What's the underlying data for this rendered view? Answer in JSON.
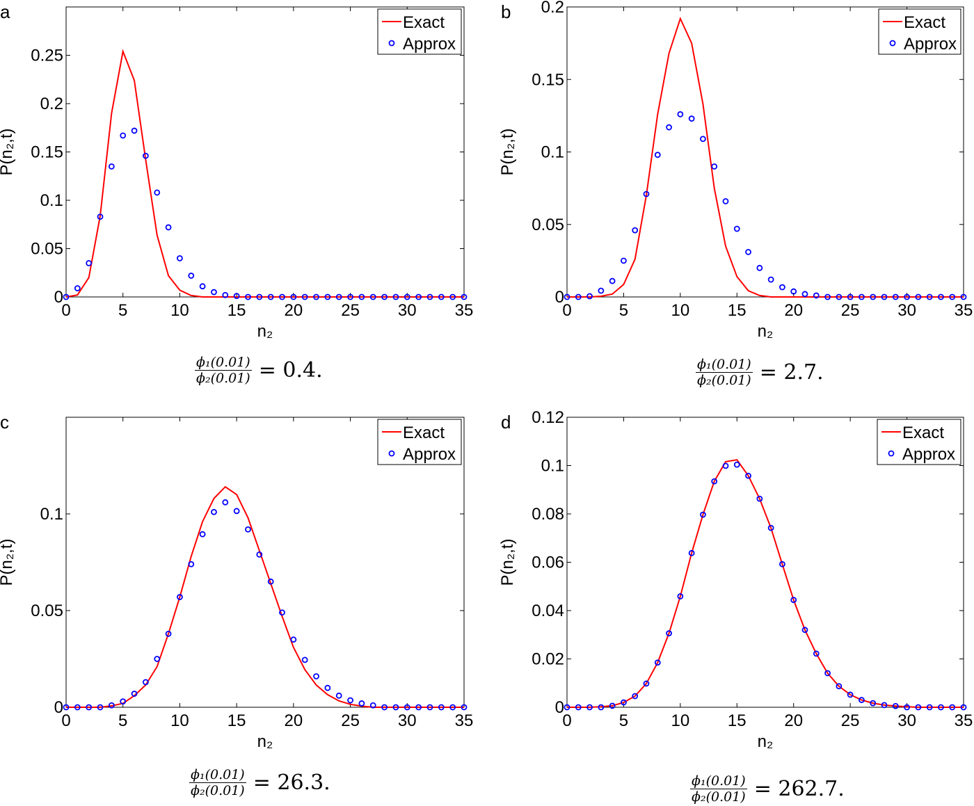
{
  "chart_data": [
    {
      "panel_label": "a",
      "type": "line+scatter",
      "xlabel": "n₂",
      "ylabel": "P(n₂,t)",
      "xlim": [
        0,
        35
      ],
      "ylim": [
        0,
        0.3
      ],
      "xticks": [
        0,
        5,
        10,
        15,
        20,
        25,
        30,
        35
      ],
      "xtick_labels": [
        "0",
        "5",
        "10",
        "15",
        "20",
        "25",
        "30",
        "35"
      ],
      "yticks": [
        0,
        0.05,
        0.1,
        0.15,
        0.2,
        0.25
      ],
      "ytick_labels": [
        "0",
        "0.05",
        "0.1",
        "0.15",
        "0.2",
        "0.25"
      ],
      "legend": [
        "Exact",
        "Approx"
      ],
      "legend_position": "top-right",
      "caption": {
        "num": "ϕ₁(0.01)",
        "den": "ϕ₂(0.01)",
        "rhs": "= 0.4."
      },
      "x": [
        0,
        1,
        2,
        3,
        4,
        5,
        6,
        7,
        8,
        9,
        10,
        11,
        12,
        13,
        14,
        15,
        16,
        17,
        18,
        19,
        20,
        21,
        22,
        23,
        24,
        25,
        26,
        27,
        28,
        29,
        30,
        31,
        32,
        33,
        34,
        35
      ],
      "series": [
        {
          "name": "Exact",
          "style": "line",
          "color": "#ff0000",
          "values": [
            0,
            0.002,
            0.02,
            0.084,
            0.19,
            0.254,
            0.224,
            0.142,
            0.064,
            0.022,
            0.007,
            0.0015,
            0,
            0,
            0,
            0,
            0,
            0,
            0,
            0,
            0,
            0,
            0,
            0,
            0,
            0,
            0,
            0,
            0,
            0,
            0,
            0,
            0,
            0,
            0,
            0
          ]
        },
        {
          "name": "Approx",
          "style": "circle",
          "color": "#0000ff",
          "values": [
            0,
            0.009,
            0.035,
            0.083,
            0.135,
            0.167,
            0.172,
            0.146,
            0.108,
            0.072,
            0.04,
            0.022,
            0.011,
            0.005,
            0.002,
            0.001,
            0,
            0,
            0,
            0,
            0,
            0,
            0,
            0,
            0,
            0,
            0,
            0,
            0,
            0,
            0,
            0,
            0,
            0,
            0,
            0
          ]
        }
      ]
    },
    {
      "panel_label": "b",
      "type": "line+scatter",
      "xlabel": "n₂",
      "ylabel": "P(n₂,t)",
      "xlim": [
        0,
        35
      ],
      "ylim": [
        0,
        0.2
      ],
      "xticks": [
        0,
        5,
        10,
        15,
        20,
        25,
        30,
        35
      ],
      "xtick_labels": [
        "0",
        "5",
        "10",
        "15",
        "20",
        "25",
        "30",
        "35"
      ],
      "yticks": [
        0,
        0.05,
        0.1,
        0.15,
        0.2
      ],
      "ytick_labels": [
        "0",
        "0.05",
        "0.1",
        "0.15",
        "0.2"
      ],
      "legend": [
        "Exact",
        "Approx"
      ],
      "legend_position": "top-right",
      "caption": {
        "num": "ϕ₁(0.01)",
        "den": "ϕ₂(0.01)",
        "rhs": "= 2.7."
      },
      "x": [
        0,
        1,
        2,
        3,
        4,
        5,
        6,
        7,
        8,
        9,
        10,
        11,
        12,
        13,
        14,
        15,
        16,
        17,
        18,
        19,
        20,
        21,
        22,
        23,
        24,
        25,
        26,
        27,
        28,
        29,
        30,
        31,
        32,
        33,
        34,
        35
      ],
      "series": [
        {
          "name": "Exact",
          "style": "line",
          "color": "#ff0000",
          "values": [
            0,
            0,
            0,
            0.0005,
            0.002,
            0.0086,
            0.026,
            0.07,
            0.126,
            0.168,
            0.192,
            0.175,
            0.133,
            0.075,
            0.035,
            0.014,
            0.0043,
            0.001,
            0,
            0,
            0,
            0,
            0,
            0,
            0,
            0,
            0,
            0,
            0,
            0,
            0,
            0,
            0,
            0,
            0,
            0
          ]
        },
        {
          "name": "Approx",
          "style": "circle",
          "color": "#0000ff",
          "values": [
            0,
            0,
            0.0005,
            0.0043,
            0.011,
            0.025,
            0.046,
            0.071,
            0.098,
            0.117,
            0.126,
            0.123,
            0.109,
            0.09,
            0.066,
            0.047,
            0.031,
            0.02,
            0.012,
            0.0067,
            0.0038,
            0.002,
            0.001,
            0,
            0,
            0,
            0,
            0,
            0,
            0,
            0,
            0,
            0,
            0,
            0,
            0
          ]
        }
      ]
    },
    {
      "panel_label": "c",
      "type": "line+scatter",
      "xlabel": "n₂",
      "ylabel": "P(n₂,t)",
      "xlim": [
        0,
        35
      ],
      "ylim": [
        0,
        0.15
      ],
      "xticks": [
        0,
        5,
        10,
        15,
        20,
        25,
        30,
        35
      ],
      "xtick_labels": [
        "0",
        "5",
        "10",
        "15",
        "20",
        "25",
        "30",
        "35"
      ],
      "yticks": [
        0,
        0.05,
        0.1
      ],
      "ytick_labels": [
        "0",
        "0.05",
        "0.1"
      ],
      "legend": [
        "Exact",
        "Approx"
      ],
      "legend_position": "top-right",
      "caption": {
        "num": "ϕ₁(0.01)",
        "den": "ϕ₂(0.01)",
        "rhs": "= 26.3."
      },
      "x": [
        0,
        1,
        2,
        3,
        4,
        5,
        6,
        7,
        8,
        9,
        10,
        11,
        12,
        13,
        14,
        15,
        16,
        17,
        18,
        19,
        20,
        21,
        22,
        23,
        24,
        25,
        26,
        27,
        28,
        29,
        30,
        31,
        32,
        33,
        34,
        35
      ],
      "series": [
        {
          "name": "Exact",
          "style": "line",
          "color": "#ff0000",
          "values": [
            0,
            0,
            0,
            0,
            0.0007,
            0.002,
            0.006,
            0.0115,
            0.021,
            0.038,
            0.057,
            0.078,
            0.096,
            0.108,
            0.114,
            0.11,
            0.098,
            0.081,
            0.064,
            0.047,
            0.031,
            0.0195,
            0.0115,
            0.0065,
            0.0033,
            0.0015,
            0.0006,
            0,
            0,
            0,
            0,
            0,
            0,
            0,
            0,
            0
          ]
        },
        {
          "name": "Approx",
          "style": "circle",
          "color": "#0000ff",
          "values": [
            0,
            0,
            0,
            0,
            0.001,
            0.003,
            0.007,
            0.013,
            0.025,
            0.038,
            0.057,
            0.074,
            0.0895,
            0.101,
            0.106,
            0.1015,
            0.092,
            0.079,
            0.065,
            0.049,
            0.035,
            0.0245,
            0.016,
            0.01,
            0.006,
            0.0036,
            0.002,
            0.001,
            0,
            0,
            0,
            0,
            0,
            0,
            0,
            0
          ]
        }
      ]
    },
    {
      "panel_label": "d",
      "type": "line+scatter",
      "xlabel": "n₂",
      "ylabel": "P(n₂,t)",
      "xlim": [
        0,
        35
      ],
      "ylim": [
        0,
        0.12
      ],
      "xticks": [
        0,
        5,
        10,
        15,
        20,
        25,
        30,
        35
      ],
      "xtick_labels": [
        "0",
        "5",
        "10",
        "15",
        "20",
        "25",
        "30",
        "35"
      ],
      "yticks": [
        0,
        0.02,
        0.04,
        0.06,
        0.08,
        0.1,
        0.12
      ],
      "ytick_labels": [
        "0",
        "0.02",
        "0.04",
        "0.06",
        "0.08",
        "0.1",
        "0.12"
      ],
      "legend": [
        "Exact",
        "Approx"
      ],
      "legend_position": "top-right",
      "caption": {
        "num": "ϕ₁(0.01)",
        "den": "ϕ₂(0.01)",
        "rhs": "= 262.7."
      },
      "x": [
        0,
        1,
        2,
        3,
        4,
        5,
        6,
        7,
        8,
        9,
        10,
        11,
        12,
        13,
        14,
        15,
        16,
        17,
        18,
        19,
        20,
        21,
        22,
        23,
        24,
        25,
        26,
        27,
        28,
        29,
        30,
        31,
        32,
        33,
        34,
        35
      ],
      "series": [
        {
          "name": "Exact",
          "style": "line",
          "color": "#ff0000",
          "values": [
            0,
            0,
            0,
            0.0002,
            0.0006,
            0.002,
            0.0046,
            0.0098,
            0.0185,
            0.0306,
            0.0459,
            0.0638,
            0.0797,
            0.0935,
            0.1016,
            0.1024,
            0.0958,
            0.0863,
            0.0742,
            0.0592,
            0.0444,
            0.032,
            0.0222,
            0.0141,
            0.0087,
            0.0052,
            0.003,
            0.0017,
            0.0009,
            0.0005,
            0.0002,
            0,
            0,
            0,
            0,
            0
          ]
        },
        {
          "name": "Approx",
          "style": "circle",
          "color": "#0000ff",
          "values": [
            0,
            0,
            0,
            0,
            0.0006,
            0.002,
            0.0046,
            0.0098,
            0.0185,
            0.0306,
            0.0459,
            0.0638,
            0.0797,
            0.0935,
            0.0999,
            0.1004,
            0.0958,
            0.0863,
            0.0742,
            0.0592,
            0.0444,
            0.032,
            0.0222,
            0.0141,
            0.0087,
            0.0052,
            0.003,
            0.0017,
            0.0009,
            0.0005,
            0,
            0,
            0,
            0,
            0,
            0
          ]
        }
      ]
    }
  ]
}
